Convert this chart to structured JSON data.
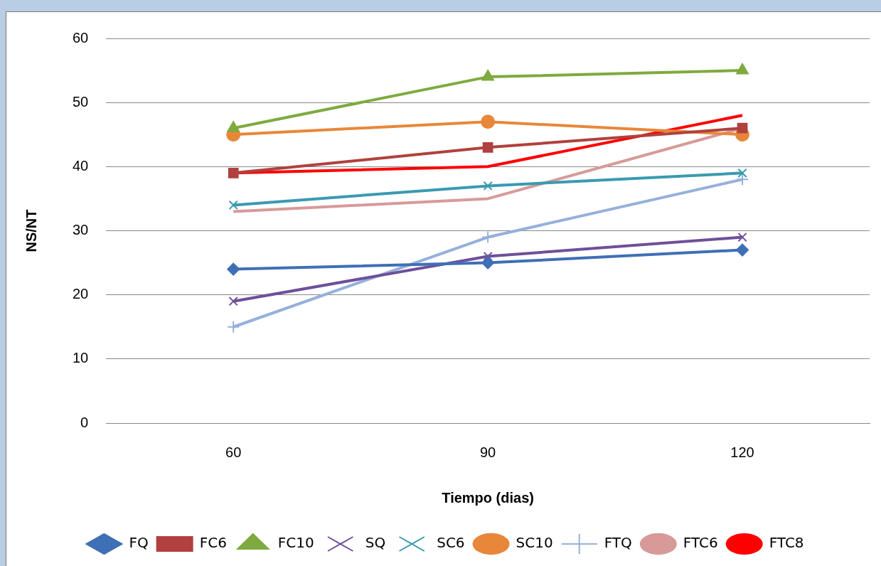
{
  "chart_data": {
    "type": "line",
    "xlabel": "Tiempo (dias)",
    "ylabel": "NS/NT",
    "categories": [
      "60",
      "90",
      "120"
    ],
    "series": [
      {
        "name": "FQ",
        "color": "#3f6fb5",
        "marker": "diamond",
        "values": [
          24,
          25,
          27
        ]
      },
      {
        "name": "FC6",
        "color": "#b0413e",
        "marker": "square",
        "values": [
          39,
          43,
          46
        ]
      },
      {
        "name": "FC10",
        "color": "#7faa3f",
        "marker": "triangle",
        "values": [
          46,
          54,
          55
        ]
      },
      {
        "name": "SQ",
        "color": "#6f4f9a",
        "marker": "cross",
        "values": [
          19,
          26,
          29
        ]
      },
      {
        "name": "SC6",
        "color": "#3a9ab0",
        "marker": "cross",
        "values": [
          34,
          37,
          39
        ]
      },
      {
        "name": "SC10",
        "color": "#e8873a",
        "marker": "circle",
        "values": [
          45,
          47,
          45
        ]
      },
      {
        "name": "FTQ",
        "color": "#96b0dc",
        "marker": "plus",
        "values": [
          15,
          29,
          38
        ]
      },
      {
        "name": "FTC6",
        "color": "#d79a99",
        "marker": "none",
        "values": [
          33,
          35,
          46
        ]
      },
      {
        "name": "FTC8",
        "color": "#ff0000",
        "marker": "none",
        "values": [
          39,
          40,
          48
        ]
      }
    ],
    "ylim": [
      0,
      60
    ],
    "yticks": [
      0,
      10,
      20,
      30,
      40,
      50,
      60
    ],
    "grid": "y",
    "legend": "bottom"
  }
}
